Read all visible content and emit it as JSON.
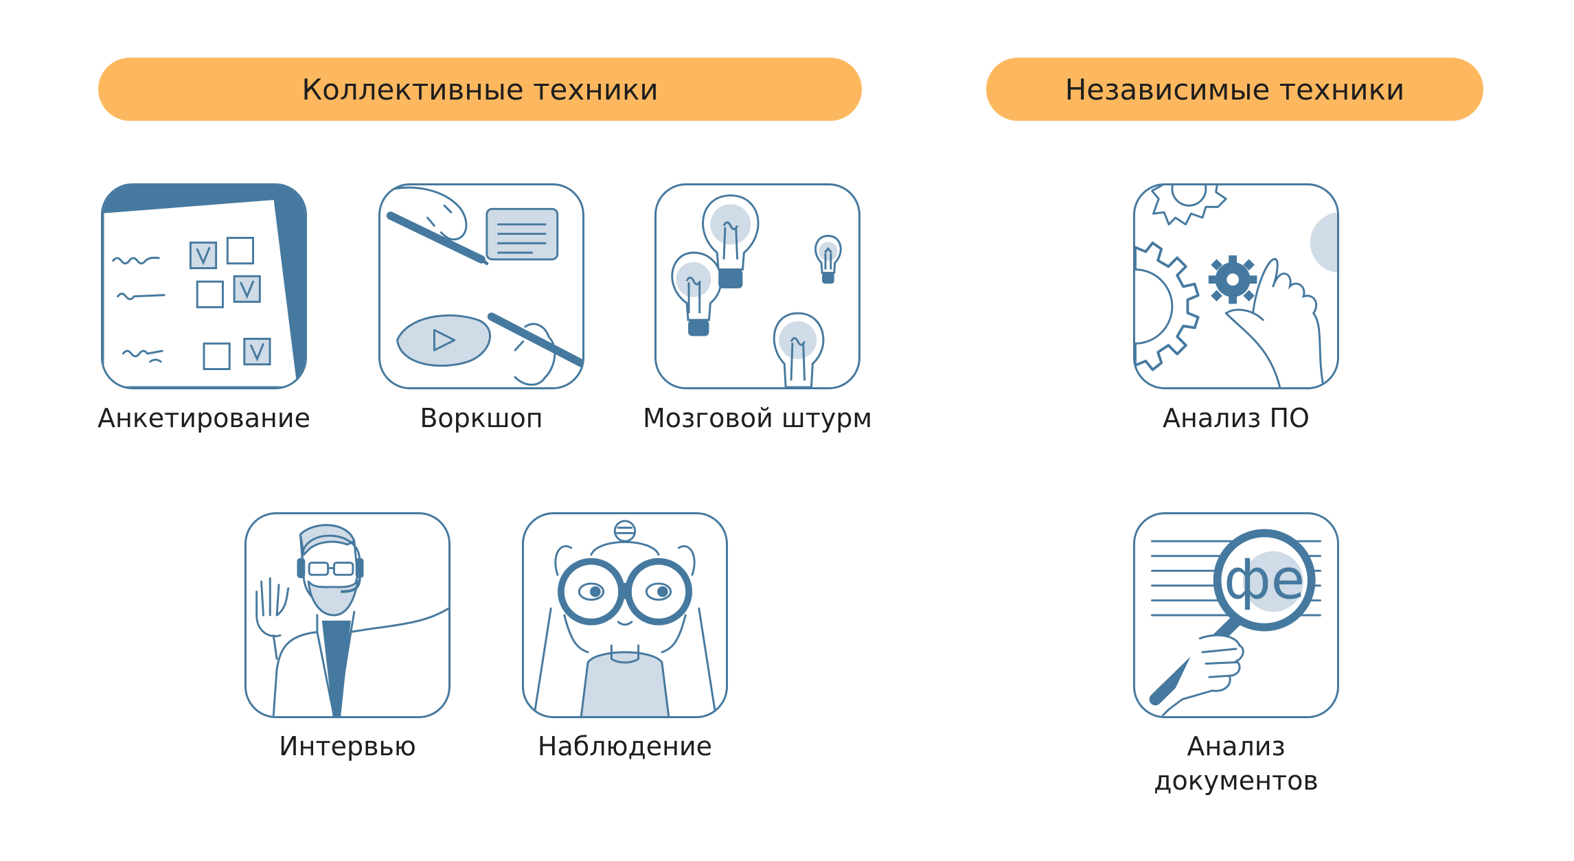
{
  "groups": {
    "collective": {
      "title": "Коллективные техники"
    },
    "independent": {
      "title": "Независимые техники"
    }
  },
  "techniques": {
    "survey": {
      "label": "Анкетирование",
      "icon": "questionnaire-checkbox-icon"
    },
    "workshop": {
      "label": "Воркшоп",
      "icon": "workshop-drawing-icon"
    },
    "brainstorm": {
      "label": "Мозговой штурм",
      "icon": "lightbulbs-icon"
    },
    "interview": {
      "label": "Интервью",
      "icon": "headset-person-icon"
    },
    "observation": {
      "label": "Наблюдение",
      "icon": "binoculars-person-icon"
    },
    "software_analysis": {
      "label": "Анализ ПО",
      "icon": "gears-hand-icon"
    },
    "document_analysis": {
      "label": "Анализ документов",
      "icon": "magnifier-document-icon"
    }
  },
  "colors": {
    "accent_pill": "#fdb85f",
    "icon_stroke": "#46799f",
    "icon_fill_light": "#cfdbe6",
    "text": "#1e1e1e"
  }
}
